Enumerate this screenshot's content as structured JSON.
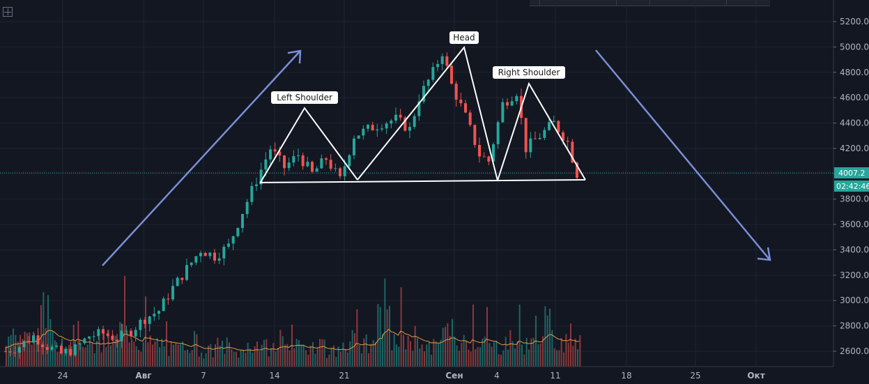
{
  "chart_data": {
    "type": "candlestick",
    "title": "",
    "y_axis": {
      "ticks": [
        "5200.0",
        "5000.0",
        "4800.0",
        "4600.0",
        "4400.0",
        "4200.0",
        "4000.0",
        "3800.0",
        "3600.0",
        "3400.0",
        "3200.0",
        "3000.0",
        "2800.0",
        "2600.0"
      ],
      "range": [
        2500,
        5300
      ]
    },
    "x_axis": {
      "ticks": [
        {
          "label": "24",
          "bold": false
        },
        {
          "label": "Авг",
          "bold": true
        },
        {
          "label": "7",
          "bold": false
        },
        {
          "label": "14",
          "bold": false
        },
        {
          "label": "21",
          "bold": false
        },
        {
          "label": "Сен",
          "bold": true
        },
        {
          "label": "4",
          "bold": false
        },
        {
          "label": "11",
          "bold": false
        },
        {
          "label": "18",
          "bold": false
        },
        {
          "label": "25",
          "bold": false
        },
        {
          "label": "Окт",
          "bold": true
        }
      ]
    },
    "current_price": "4007.2",
    "countdown": "02:42:46",
    "annotations": [
      "Left Shoulder",
      "Head",
      "Right Shoulder"
    ],
    "price_path": [
      [
        0,
        2600
      ],
      [
        3,
        2640
      ],
      [
        6,
        2720
      ],
      [
        9,
        2640
      ],
      [
        12,
        2580
      ],
      [
        15,
        2620
      ],
      [
        18,
        2720
      ],
      [
        21,
        2740
      ],
      [
        24,
        2700
      ],
      [
        27,
        2760
      ],
      [
        30,
        2860
      ],
      [
        33,
        2920
      ],
      [
        36,
        3100
      ],
      [
        39,
        3250
      ],
      [
        42,
        3400
      ],
      [
        45,
        3350
      ],
      [
        48,
        3430
      ],
      [
        51,
        3700
      ],
      [
        54,
        3950
      ],
      [
        57,
        4200
      ],
      [
        60,
        4050
      ],
      [
        63,
        4150
      ],
      [
        66,
        4000
      ],
      [
        69,
        4120
      ],
      [
        72,
        3950
      ],
      [
        75,
        4300
      ],
      [
        78,
        4350
      ],
      [
        81,
        4400
      ],
      [
        84,
        4430
      ],
      [
        87,
        4350
      ],
      [
        89,
        4600
      ],
      [
        92,
        4800
      ],
      [
        94,
        4960
      ],
      [
        96,
        4700
      ],
      [
        99,
        4450
      ],
      [
        102,
        4150
      ],
      [
        104,
        4100
      ],
      [
        107,
        4550
      ],
      [
        110,
        4650
      ],
      [
        112,
        4200
      ],
      [
        115,
        4300
      ],
      [
        118,
        4400
      ],
      [
        121,
        4250
      ],
      [
        123,
        4000
      ]
    ],
    "volume_profile": [
      0.38,
      0.32,
      0.6,
      0.28,
      0.36,
      0.24,
      0.3,
      0.42,
      0.28,
      0.26,
      0.2,
      0.3,
      0.18,
      0.24,
      0.16,
      0.26,
      0.22,
      0.34,
      0.22,
      0.28,
      0.18,
      0.3,
      0.26,
      0.5,
      0.3,
      0.34,
      0.22,
      0.4,
      0.28,
      0.32,
      0.24,
      0.3,
      0.26,
      0.48,
      0.3,
      0.36
    ]
  }
}
